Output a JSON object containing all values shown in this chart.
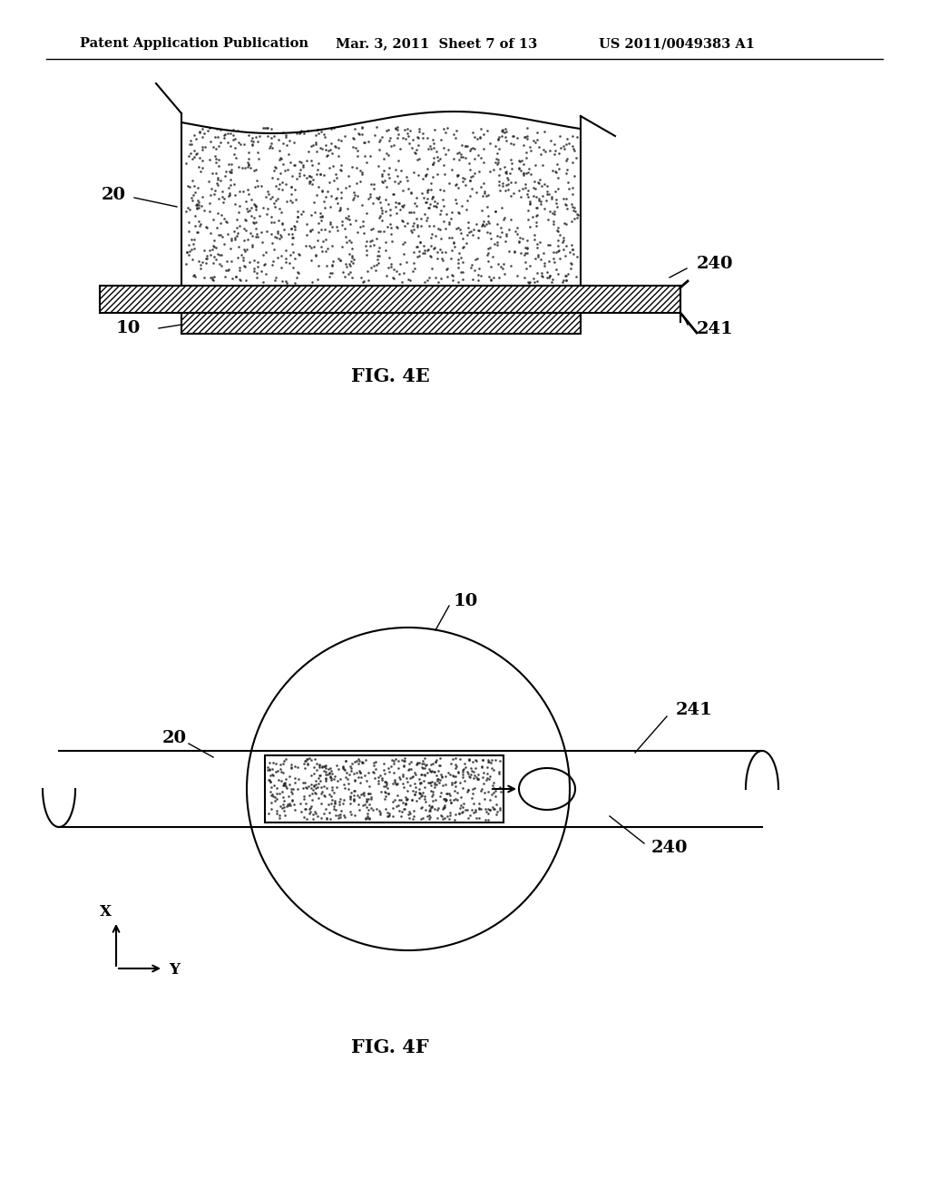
{
  "bg_color": "#ffffff",
  "header_left": "Patent Application Publication",
  "header_mid": "Mar. 3, 2011  Sheet 7 of 13",
  "header_right": "US 2011/0049383 A1",
  "fig4e_label": "FIG. 4E",
  "fig4f_label": "FIG. 4F",
  "label_20_4e": "20",
  "label_10_4e": "10",
  "label_240_4e": "240",
  "label_241_4e": "241",
  "label_10_4f": "10",
  "label_20_4f": "20",
  "label_240_4f": "240",
  "label_241_4f": "241",
  "label_X": "X",
  "label_Y": "Y",
  "line_color": "#000000"
}
